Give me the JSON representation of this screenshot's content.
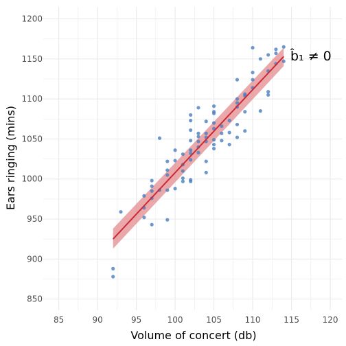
{
  "chart_data": {
    "type": "scatter",
    "xlabel": "Volume of concert (db)",
    "ylabel": "Ears ringing (mins)",
    "xlim": [
      83,
      121.5
    ],
    "ylim": [
      836,
      1215
    ],
    "xticks": [
      85,
      90,
      95,
      100,
      105,
      110,
      115,
      120
    ],
    "yticks": [
      850,
      900,
      950,
      1000,
      1050,
      1100,
      1150,
      1200
    ],
    "grid": true,
    "annotation": {
      "text": "b̂₁ ≠ 0"
    },
    "colors": {
      "points": "#4a7ebf",
      "fit_line": "#cc2936",
      "confidence_band": "#e38b8f",
      "grid": "#ebebeb"
    },
    "points": [
      {
        "x": 92,
        "y": 888
      },
      {
        "x": 92,
        "y": 878
      },
      {
        "x": 93,
        "y": 959
      },
      {
        "x": 96,
        "y": 979
      },
      {
        "x": 96,
        "y": 964
      },
      {
        "x": 96,
        "y": 952
      },
      {
        "x": 97,
        "y": 998
      },
      {
        "x": 97,
        "y": 991
      },
      {
        "x": 97,
        "y": 985
      },
      {
        "x": 97,
        "y": 976
      },
      {
        "x": 97,
        "y": 943
      },
      {
        "x": 98,
        "y": 1051
      },
      {
        "x": 98,
        "y": 986
      },
      {
        "x": 99,
        "y": 1022
      },
      {
        "x": 99,
        "y": 1011
      },
      {
        "x": 99,
        "y": 1005
      },
      {
        "x": 99,
        "y": 986
      },
      {
        "x": 99,
        "y": 949
      },
      {
        "x": 100,
        "y": 1036
      },
      {
        "x": 100,
        "y": 1023
      },
      {
        "x": 100,
        "y": 988
      },
      {
        "x": 101,
        "y": 1031
      },
      {
        "x": 101,
        "y": 1018
      },
      {
        "x": 101,
        "y": 1010
      },
      {
        "x": 101,
        "y": 1001
      },
      {
        "x": 101,
        "y": 997
      },
      {
        "x": 102,
        "y": 1080
      },
      {
        "x": 102,
        "y": 1073
      },
      {
        "x": 102,
        "y": 1061
      },
      {
        "x": 102,
        "y": 1048
      },
      {
        "x": 102,
        "y": 1036
      },
      {
        "x": 102,
        "y": 1032
      },
      {
        "x": 102,
        "y": 1024
      },
      {
        "x": 102,
        "y": 999
      },
      {
        "x": 102,
        "y": 997
      },
      {
        "x": 103,
        "y": 1089
      },
      {
        "x": 103,
        "y": 1057
      },
      {
        "x": 103,
        "y": 1053
      },
      {
        "x": 103,
        "y": 1047
      },
      {
        "x": 103,
        "y": 1040
      },
      {
        "x": 103,
        "y": 1033
      },
      {
        "x": 104,
        "y": 1072
      },
      {
        "x": 104,
        "y": 1057
      },
      {
        "x": 104,
        "y": 1052
      },
      {
        "x": 104,
        "y": 1047
      },
      {
        "x": 104,
        "y": 1022
      },
      {
        "x": 104,
        "y": 1008
      },
      {
        "x": 105,
        "y": 1091
      },
      {
        "x": 105,
        "y": 1084
      },
      {
        "x": 105,
        "y": 1082
      },
      {
        "x": 105,
        "y": 1070
      },
      {
        "x": 105,
        "y": 1063
      },
      {
        "x": 105,
        "y": 1049
      },
      {
        "x": 105,
        "y": 1043
      },
      {
        "x": 105,
        "y": 1038
      },
      {
        "x": 106,
        "y": 1066
      },
      {
        "x": 106,
        "y": 1057
      },
      {
        "x": 106,
        "y": 1048
      },
      {
        "x": 107,
        "y": 1073
      },
      {
        "x": 107,
        "y": 1058
      },
      {
        "x": 107,
        "y": 1043
      },
      {
        "x": 108,
        "y": 1124
      },
      {
        "x": 108,
        "y": 1100
      },
      {
        "x": 108,
        "y": 1095
      },
      {
        "x": 108,
        "y": 1090
      },
      {
        "x": 108,
        "y": 1068
      },
      {
        "x": 108,
        "y": 1052
      },
      {
        "x": 109,
        "y": 1106
      },
      {
        "x": 109,
        "y": 1104
      },
      {
        "x": 109,
        "y": 1084
      },
      {
        "x": 109,
        "y": 1060
      },
      {
        "x": 110,
        "y": 1164
      },
      {
        "x": 110,
        "y": 1133
      },
      {
        "x": 110,
        "y": 1124
      },
      {
        "x": 110,
        "y": 1114
      },
      {
        "x": 111,
        "y": 1150
      },
      {
        "x": 111,
        "y": 1085
      },
      {
        "x": 112,
        "y": 1155
      },
      {
        "x": 112,
        "y": 1135
      },
      {
        "x": 112,
        "y": 1109
      },
      {
        "x": 112,
        "y": 1105
      },
      {
        "x": 113,
        "y": 1162
      },
      {
        "x": 113,
        "y": 1157
      },
      {
        "x": 113,
        "y": 1144
      },
      {
        "x": 114,
        "y": 1165
      },
      {
        "x": 114,
        "y": 1147
      }
    ],
    "fit": {
      "x": [
        92,
        114
      ],
      "y": [
        925,
        1153
      ]
    },
    "band": {
      "x": [
        92,
        114
      ],
      "upper": [
        938,
        1164
      ],
      "lower": [
        913,
        1141
      ]
    }
  }
}
